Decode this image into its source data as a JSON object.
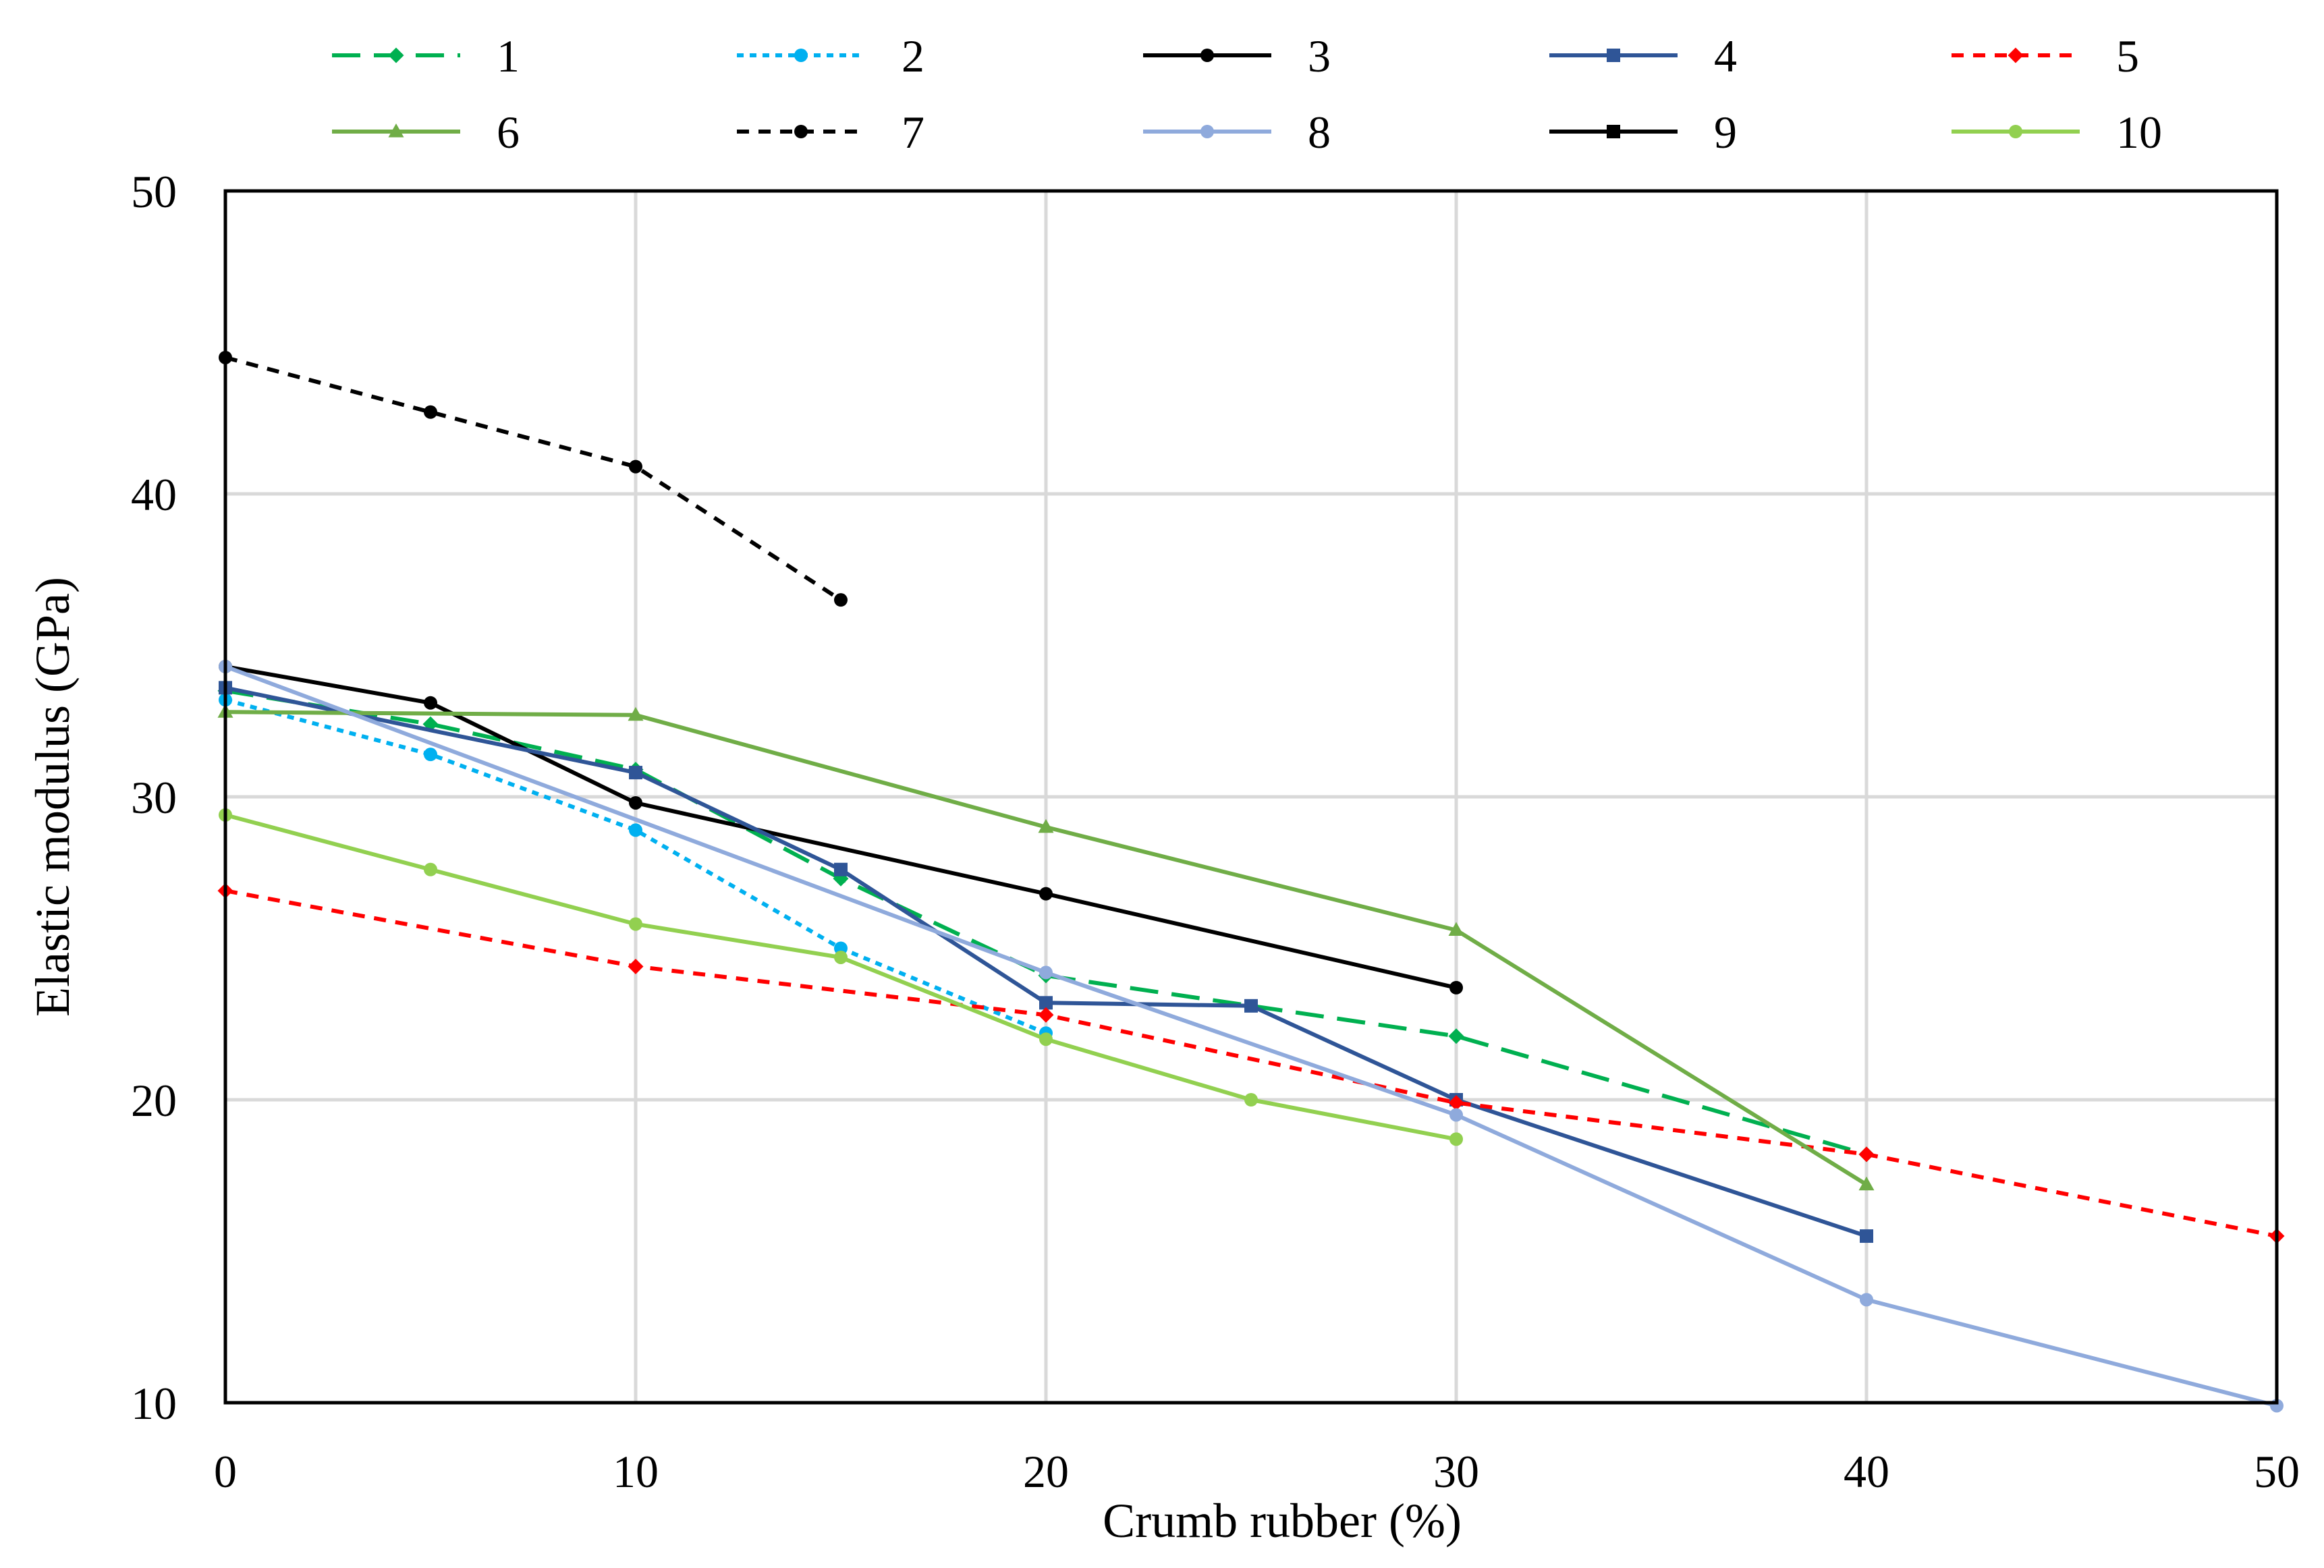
{
  "chart_data": {
    "type": "line",
    "title": "",
    "xlabel": "Crumb rubber (%)",
    "ylabel": "Elastic modulus (GPa)",
    "xlim": [
      0,
      50
    ],
    "ylim": [
      10,
      50
    ],
    "xticks": [
      0,
      10,
      20,
      30,
      40,
      50
    ],
    "yticks": [
      10,
      20,
      30,
      40,
      50
    ],
    "grid": true,
    "legend_position": "top",
    "series": [
      {
        "name": "1",
        "color": "#00B050",
        "dash": "long-dash",
        "marker": "diamond",
        "x": [
          0,
          5,
          10,
          15,
          20,
          30,
          40
        ],
        "y": [
          33.5,
          32.4,
          30.9,
          27.3,
          24.1,
          22.1,
          18.2
        ]
      },
      {
        "name": "2",
        "color": "#00B0F0",
        "dash": "dot",
        "marker": "circle",
        "x": [
          0,
          5,
          10,
          15,
          20
        ],
        "y": [
          33.2,
          31.4,
          28.9,
          25.0,
          22.2
        ]
      },
      {
        "name": "3",
        "color": "#000000",
        "dash": "solid",
        "marker": "circle",
        "x": [
          0,
          5,
          10,
          20,
          30
        ],
        "y": [
          34.3,
          33.1,
          29.8,
          26.8,
          23.7
        ]
      },
      {
        "name": "4",
        "color": "#2F5597",
        "dash": "solid",
        "marker": "square",
        "x": [
          0,
          10,
          15,
          20,
          25,
          30,
          40
        ],
        "y": [
          33.6,
          30.8,
          27.6,
          23.2,
          23.1,
          20.0,
          15.5
        ]
      },
      {
        "name": "5",
        "color": "#FF0000",
        "dash": "short-dash",
        "marker": "diamond",
        "x": [
          0,
          10,
          20,
          30,
          40,
          50
        ],
        "y": [
          26.9,
          24.4,
          22.8,
          19.9,
          18.2,
          15.5
        ]
      },
      {
        "name": "6",
        "color": "#70AD47",
        "dash": "solid",
        "marker": "triangle",
        "x": [
          0,
          10,
          20,
          30,
          40
        ],
        "y": [
          32.8,
          32.7,
          29.0,
          25.6,
          17.2
        ]
      },
      {
        "name": "7",
        "color": "#000000",
        "dash": "short-dash",
        "marker": "circle",
        "x": [
          0,
          5,
          10,
          15
        ],
        "y": [
          44.5,
          42.7,
          40.9,
          36.5
        ]
      },
      {
        "name": "8",
        "color": "#8FAADC",
        "dash": "solid",
        "marker": "circle",
        "x": [
          0,
          20,
          30,
          40,
          50
        ],
        "y": [
          34.3,
          24.2,
          19.5,
          13.4,
          9.9
        ]
      },
      {
        "name": "9",
        "color": "#000000",
        "dash": "solid",
        "marker": "square",
        "x": [],
        "y": []
      },
      {
        "name": "10",
        "color": "#92D050",
        "dash": "solid",
        "marker": "circle",
        "x": [
          0,
          5,
          10,
          15,
          20,
          25,
          30
        ],
        "y": [
          29.4,
          27.6,
          25.8,
          24.7,
          22.0,
          20.0,
          18.7
        ]
      }
    ]
  }
}
